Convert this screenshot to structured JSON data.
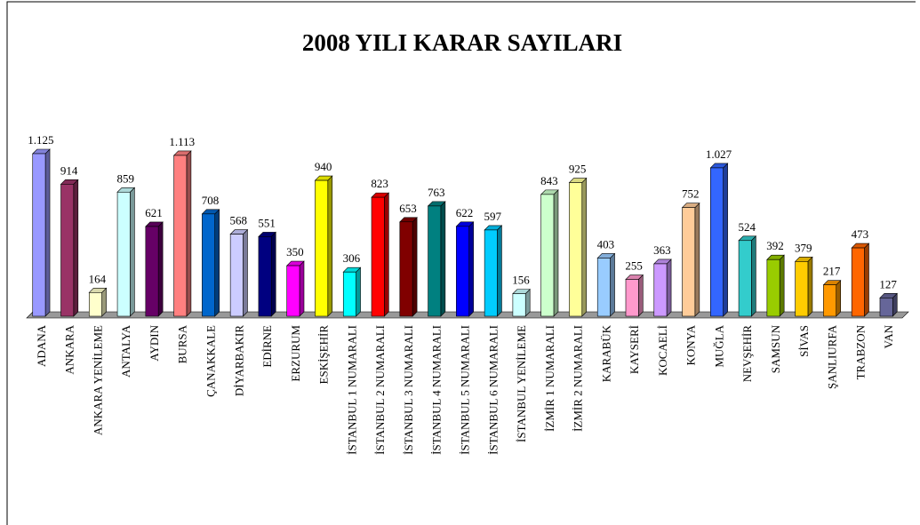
{
  "chart_data": {
    "type": "bar3d",
    "title": "2008 YILI KARAR SAYILARI",
    "categories": [
      "ADANA",
      "ANKARA",
      "ANKARA YENİLEME",
      "ANTALYA",
      "AYDIN",
      "BURSA",
      "ÇANAKKALE",
      "DİYARBAKIR",
      "EDİRNE",
      "ERZURUM",
      "ESKİŞEHİR",
      "İSTANBUL 1 NUMARALI",
      "İSTANBUL 2 NUMARALI",
      "İSTANBUL 3 NUMARALI",
      "İSTANBUL 4 NUMARALI",
      "İSTANBUL 5 NUMARALI",
      "İSTANBUL 6 NUMARALI",
      "İSTANBUL YENİLEME",
      "İZMİR 1 NUMARALI",
      "İZMİR 2 NUMARALI",
      "KARABÜK",
      "KAYSERİ",
      "KOCAELİ",
      "KONYA",
      "MUĞLA",
      "NEVŞEHİR",
      "SAMSUN",
      "SİVAS",
      "ŞANLIURFA",
      "TRABZON",
      "VAN"
    ],
    "values": [
      1125,
      914,
      164,
      859,
      621,
      1113,
      708,
      568,
      551,
      350,
      940,
      306,
      823,
      653,
      763,
      622,
      597,
      156,
      843,
      925,
      403,
      255,
      363,
      752,
      1027,
      524,
      392,
      379,
      217,
      473,
      127
    ],
    "value_labels": [
      "1.125",
      "914",
      "164",
      "859",
      "621",
      "1.113",
      "708",
      "568",
      "551",
      "350",
      "940",
      "306",
      "823",
      "653",
      "763",
      "622",
      "597",
      "156",
      "843",
      "925",
      "403",
      "255",
      "363",
      "752",
      "1.027",
      "524",
      "392",
      "379",
      "217",
      "473",
      "127"
    ],
    "colors": [
      "#9999ff",
      "#993366",
      "#ffffcc",
      "#ccffff",
      "#660066",
      "#ff8080",
      "#0066cc",
      "#ccccff",
      "#000080",
      "#ff00ff",
      "#ffff00",
      "#00ffff",
      "#ff0000",
      "#800000",
      "#008080",
      "#0000ff",
      "#00ccff",
      "#ccffff",
      "#ccffcc",
      "#ffff99",
      "#99ccff",
      "#ff99cc",
      "#cc99ff",
      "#ffcc99",
      "#3366ff",
      "#33cccc",
      "#99cc00",
      "#ffcc00",
      "#ff9900",
      "#ff6600",
      "#666699"
    ]
  }
}
